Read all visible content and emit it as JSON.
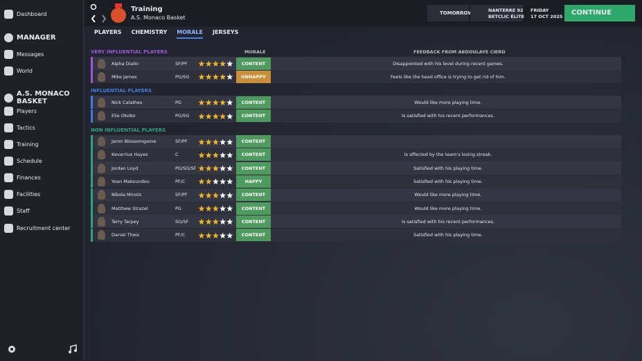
{
  "sidebar": {
    "items": [
      {
        "label": "Dashboard",
        "heading": false
      },
      {
        "label": "MANAGER",
        "heading": true
      },
      {
        "label": "Messages",
        "heading": false
      },
      {
        "label": "World",
        "heading": false
      },
      {
        "label": "A.S. MONACO BASKET",
        "heading": true
      },
      {
        "label": "Players",
        "heading": false
      },
      {
        "label": "Tactics",
        "heading": false
      },
      {
        "label": "Training",
        "heading": false
      },
      {
        "label": "Schedule",
        "heading": false
      },
      {
        "label": "Finances",
        "heading": false
      },
      {
        "label": "Facilities",
        "heading": false
      },
      {
        "label": "Staff",
        "heading": false
      },
      {
        "label": "Recruitment center",
        "heading": false
      }
    ]
  },
  "header": {
    "title": "Training",
    "subtitle": "A.S. Monaco Basket",
    "next": "TOMORROW",
    "opponent": "NANTERRE 92",
    "league": "BETCLIC ÉLITE",
    "day": "FRIDAY",
    "date": "17 OCT 2025",
    "button": "CONTINUE"
  },
  "tabs": [
    {
      "label": "PLAYERS",
      "active": false
    },
    {
      "label": "CHEMISTRY",
      "active": false
    },
    {
      "label": "MORALE",
      "active": true
    },
    {
      "label": "JERSEYS",
      "active": false
    }
  ],
  "table": {
    "morale_header": "MORALE",
    "feedback_header": "FEEDBACK FROM ABDOULAYE CIERD",
    "groups": [
      {
        "name": "VERY INFLUENTIAL PLAYERS",
        "color": "#9b59d6",
        "players": [
          {
            "name": "Alpha Diallo",
            "position": "SF/PF",
            "rating": 4,
            "morale": "CONTENT",
            "morale_color": "#4e9a5f",
            "feedback": "Disappointed with his level during recent games."
          },
          {
            "name": "Mike James",
            "position": "PG/SG",
            "rating": 4,
            "morale": "UNHAPPY",
            "morale_color": "#c98f3a",
            "feedback": "Feels like the head office is trying to get rid of him."
          }
        ]
      },
      {
        "name": "INFLUENTIAL PLAYERS",
        "color": "#3f7fe0",
        "players": [
          {
            "name": "Nick Calathes",
            "position": "PG",
            "rating": 4,
            "morale": "CONTENT",
            "morale_color": "#4e9a5f",
            "feedback": "Would like more playing time."
          },
          {
            "name": "Elie Okobo",
            "position": "PG/SG",
            "rating": 4,
            "morale": "CONTENT",
            "morale_color": "#4e9a5f",
            "feedback": "Is satisfied with his recent performances."
          }
        ]
      },
      {
        "name": "NON INFLUENTIAL PLAYERS",
        "color": "#2fa37a",
        "players": [
          {
            "name": "Jaron Blossomgame",
            "position": "SF/PF",
            "rating": 3,
            "morale": "CONTENT",
            "morale_color": "#4e9a5f",
            "feedback": null
          },
          {
            "name": "Kevarrius Hayes",
            "position": "C",
            "rating": 3,
            "morale": "CONTENT",
            "morale_color": "#4e9a5f",
            "feedback": "Is affected by the team's losing streak."
          },
          {
            "name": "Jordan Loyd",
            "position": "PG/SG/SF",
            "rating": 3,
            "morale": "CONTENT",
            "morale_color": "#4e9a5f",
            "feedback": "Satisfied with his playing time."
          },
          {
            "name": "Yoan Makoundou",
            "position": "PF/C",
            "rating": 2,
            "morale": "HAPPY",
            "morale_color": "#4e9a5f",
            "feedback": "Satisfied with his playing time."
          },
          {
            "name": "Nikola Mirotic",
            "position": "SF/PF",
            "rating": 3,
            "morale": "CONTENT",
            "morale_color": "#4e9a5f",
            "feedback": "Would like more playing time."
          },
          {
            "name": "Matthew Strazel",
            "position": "PG",
            "rating": 3,
            "morale": "CONTENT",
            "morale_color": "#4e9a5f",
            "feedback": "Would like more playing time."
          },
          {
            "name": "Terry Tarpey",
            "position": "SG/SF",
            "rating": 3,
            "morale": "CONTENT",
            "morale_color": "#4e9a5f",
            "feedback": "Is satisfied with his recent performances."
          },
          {
            "name": "Daniel Theis",
            "position": "PF/C",
            "rating": 3,
            "morale": "CONTENT",
            "morale_color": "#4e9a5f",
            "feedback": "Satisfied with his playing time."
          }
        ]
      }
    ]
  }
}
